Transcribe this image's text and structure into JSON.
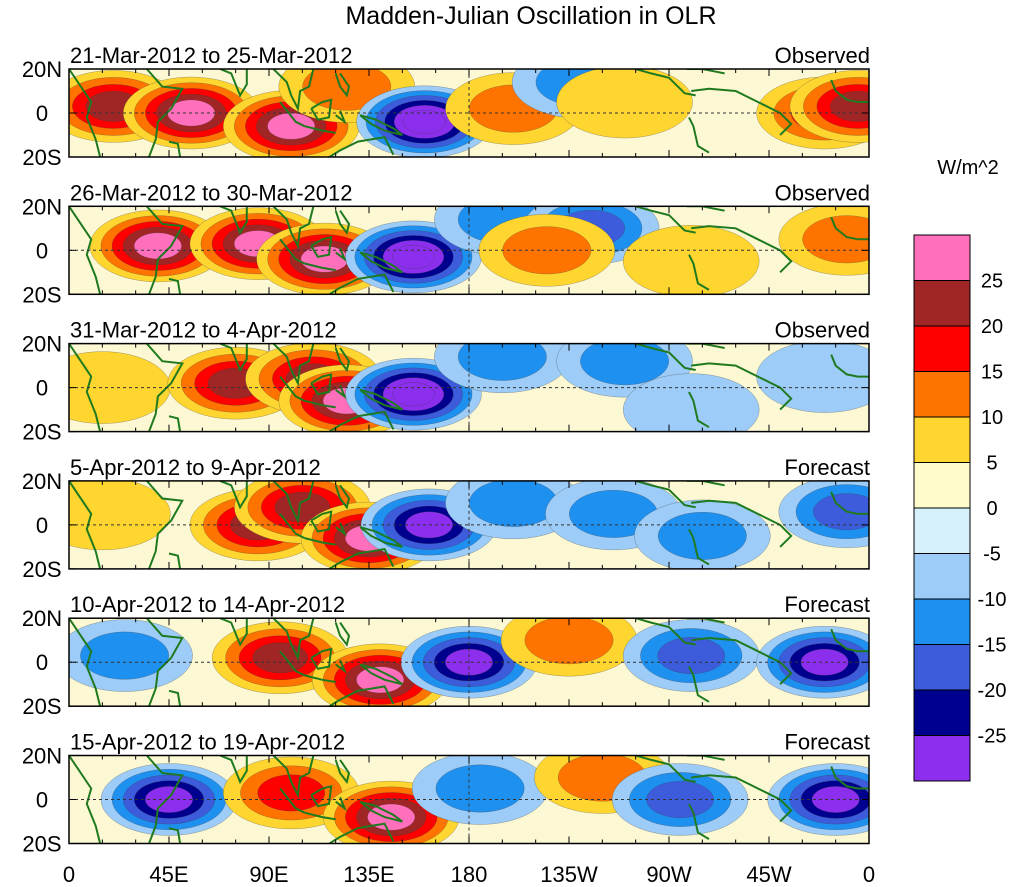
{
  "chart_data": {
    "type": "heatmap",
    "title": "Madden-Julian Oscillation in OLR",
    "units": "W/m^2",
    "latitude_ticks": [
      "20N",
      "0",
      "20S"
    ],
    "longitude_ticks": [
      "0",
      "45E",
      "90E",
      "135E",
      "180",
      "135W",
      "90W",
      "45W",
      "0"
    ],
    "lat_range": [
      -20,
      20
    ],
    "lon_range_deg_east": [
      0,
      360
    ],
    "colorbar": {
      "tick_labels": [
        "25",
        "20",
        "15",
        "10",
        "5",
        "0",
        "-5",
        "-10",
        "-15",
        "-20",
        "-25"
      ],
      "levels": [
        -30,
        -25,
        -20,
        -15,
        -10,
        -5,
        0,
        5,
        10,
        15,
        20,
        25,
        30
      ],
      "colors_low_to_high": [
        "#8c2eed",
        "#00008f",
        "#3c5cdc",
        "#1e90f0",
        "#9cccf7",
        "#d6f1fc",
        "#fffccb",
        "#ffd530",
        "#ff7400",
        "#fe0000",
        "#a02525",
        "#ff6fbc"
      ]
    },
    "panels": [
      {
        "date_label": "21-Mar-2012 to 25-Mar-2012",
        "kind": "Observed",
        "anomalies": [
          {
            "lon": 20,
            "lat": 3,
            "value": 20
          },
          {
            "lon": 55,
            "lat": 0,
            "value": 25
          },
          {
            "lon": 100,
            "lat": -6,
            "value": 25
          },
          {
            "lon": 125,
            "lat": 12,
            "value": 10
          },
          {
            "lon": 160,
            "lat": -4,
            "value": -30
          },
          {
            "lon": 200,
            "lat": 2,
            "value": 10
          },
          {
            "lon": 230,
            "lat": 14,
            "value": -10
          },
          {
            "lon": 250,
            "lat": 5,
            "value": 5
          },
          {
            "lon": 340,
            "lat": 0,
            "value": 15
          },
          {
            "lon": 355,
            "lat": 3,
            "value": 20
          }
        ]
      },
      {
        "date_label": "26-Mar-2012 to 30-Mar-2012",
        "kind": "Observed",
        "anomalies": [
          {
            "lon": 40,
            "lat": 2,
            "value": 25
          },
          {
            "lon": 85,
            "lat": 3,
            "value": 25
          },
          {
            "lon": 115,
            "lat": -4,
            "value": 25
          },
          {
            "lon": 155,
            "lat": -3,
            "value": -30
          },
          {
            "lon": 195,
            "lat": 14,
            "value": -10
          },
          {
            "lon": 235,
            "lat": 10,
            "value": -15
          },
          {
            "lon": 215,
            "lat": 0,
            "value": 10
          },
          {
            "lon": 280,
            "lat": -5,
            "value": 5
          },
          {
            "lon": 350,
            "lat": 5,
            "value": 10
          }
        ]
      },
      {
        "date_label": "31-Mar-2012 to 4-Apr-2012",
        "kind": "Observed",
        "anomalies": [
          {
            "lon": 15,
            "lat": 0,
            "value": 5
          },
          {
            "lon": 75,
            "lat": 2,
            "value": 20
          },
          {
            "lon": 110,
            "lat": 4,
            "value": 20
          },
          {
            "lon": 125,
            "lat": -6,
            "value": 25
          },
          {
            "lon": 155,
            "lat": -3,
            "value": -30
          },
          {
            "lon": 195,
            "lat": 14,
            "value": -10
          },
          {
            "lon": 250,
            "lat": 12,
            "value": -10
          },
          {
            "lon": 280,
            "lat": -10,
            "value": -5
          },
          {
            "lon": 340,
            "lat": 5,
            "value": -5
          }
        ]
      },
      {
        "date_label": "5-Apr-2012 to 9-Apr-2012",
        "kind": "Forecast",
        "anomalies": [
          {
            "lon": 15,
            "lat": 5,
            "value": 5
          },
          {
            "lon": 85,
            "lat": 0,
            "value": 20
          },
          {
            "lon": 105,
            "lat": 8,
            "value": 20
          },
          {
            "lon": 135,
            "lat": -6,
            "value": 25
          },
          {
            "lon": 162,
            "lat": 0,
            "value": -25
          },
          {
            "lon": 200,
            "lat": 10,
            "value": -10
          },
          {
            "lon": 245,
            "lat": 5,
            "value": -10
          },
          {
            "lon": 285,
            "lat": -5,
            "value": -10
          },
          {
            "lon": 350,
            "lat": 6,
            "value": -15
          }
        ]
      },
      {
        "date_label": "10-Apr-2012 to 14-Apr-2012",
        "kind": "Forecast",
        "anomalies": [
          {
            "lon": 25,
            "lat": 3,
            "value": -10
          },
          {
            "lon": 95,
            "lat": 2,
            "value": 20
          },
          {
            "lon": 140,
            "lat": -8,
            "value": 25
          },
          {
            "lon": 180,
            "lat": 0,
            "value": -25
          },
          {
            "lon": 225,
            "lat": 10,
            "value": 10
          },
          {
            "lon": 280,
            "lat": 3,
            "value": -15
          },
          {
            "lon": 340,
            "lat": 0,
            "value": -25
          }
        ]
      },
      {
        "date_label": "15-Apr-2012 to 19-Apr-2012",
        "kind": "Forecast",
        "anomalies": [
          {
            "lon": 45,
            "lat": 0,
            "value": -25
          },
          {
            "lon": 100,
            "lat": 3,
            "value": 15
          },
          {
            "lon": 145,
            "lat": -8,
            "value": 25
          },
          {
            "lon": 185,
            "lat": 5,
            "value": -10
          },
          {
            "lon": 240,
            "lat": 10,
            "value": 10
          },
          {
            "lon": 275,
            "lat": 0,
            "value": -15
          },
          {
            "lon": 345,
            "lat": 0,
            "value": -25
          }
        ]
      }
    ]
  }
}
